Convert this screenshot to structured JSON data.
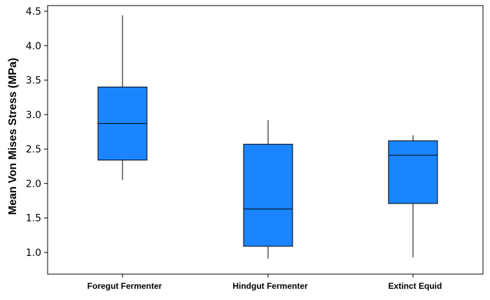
{
  "chart_data": {
    "type": "box",
    "ylabel": "Mean Von Mises Stress (MPa)",
    "ylim": [
      0.7,
      4.5
    ],
    "yticks": [
      "1.0",
      "1.5",
      "2.0",
      "2.5",
      "3.0",
      "3.5",
      "4.0",
      "4.5"
    ],
    "ytick_values": [
      1.0,
      1.5,
      2.0,
      2.5,
      3.0,
      3.5,
      4.0,
      4.5
    ],
    "categories": [
      "Foregut Fermenter",
      "Hindgut Fermenter",
      "Extinct Equid"
    ],
    "boxes": [
      {
        "category": "Foregut Fermenter",
        "min": 2.05,
        "q1": 2.34,
        "median": 2.87,
        "q3": 3.4,
        "max": 4.44
      },
      {
        "category": "Hindgut Fermenter",
        "min": 0.91,
        "q1": 1.09,
        "median": 1.63,
        "q3": 2.57,
        "max": 2.92
      },
      {
        "category": "Extinct Equid",
        "min": 0.93,
        "q1": 1.71,
        "median": 2.41,
        "q3": 2.62,
        "max": 2.7
      }
    ],
    "box_color": "#1a85ff",
    "grid": false
  }
}
